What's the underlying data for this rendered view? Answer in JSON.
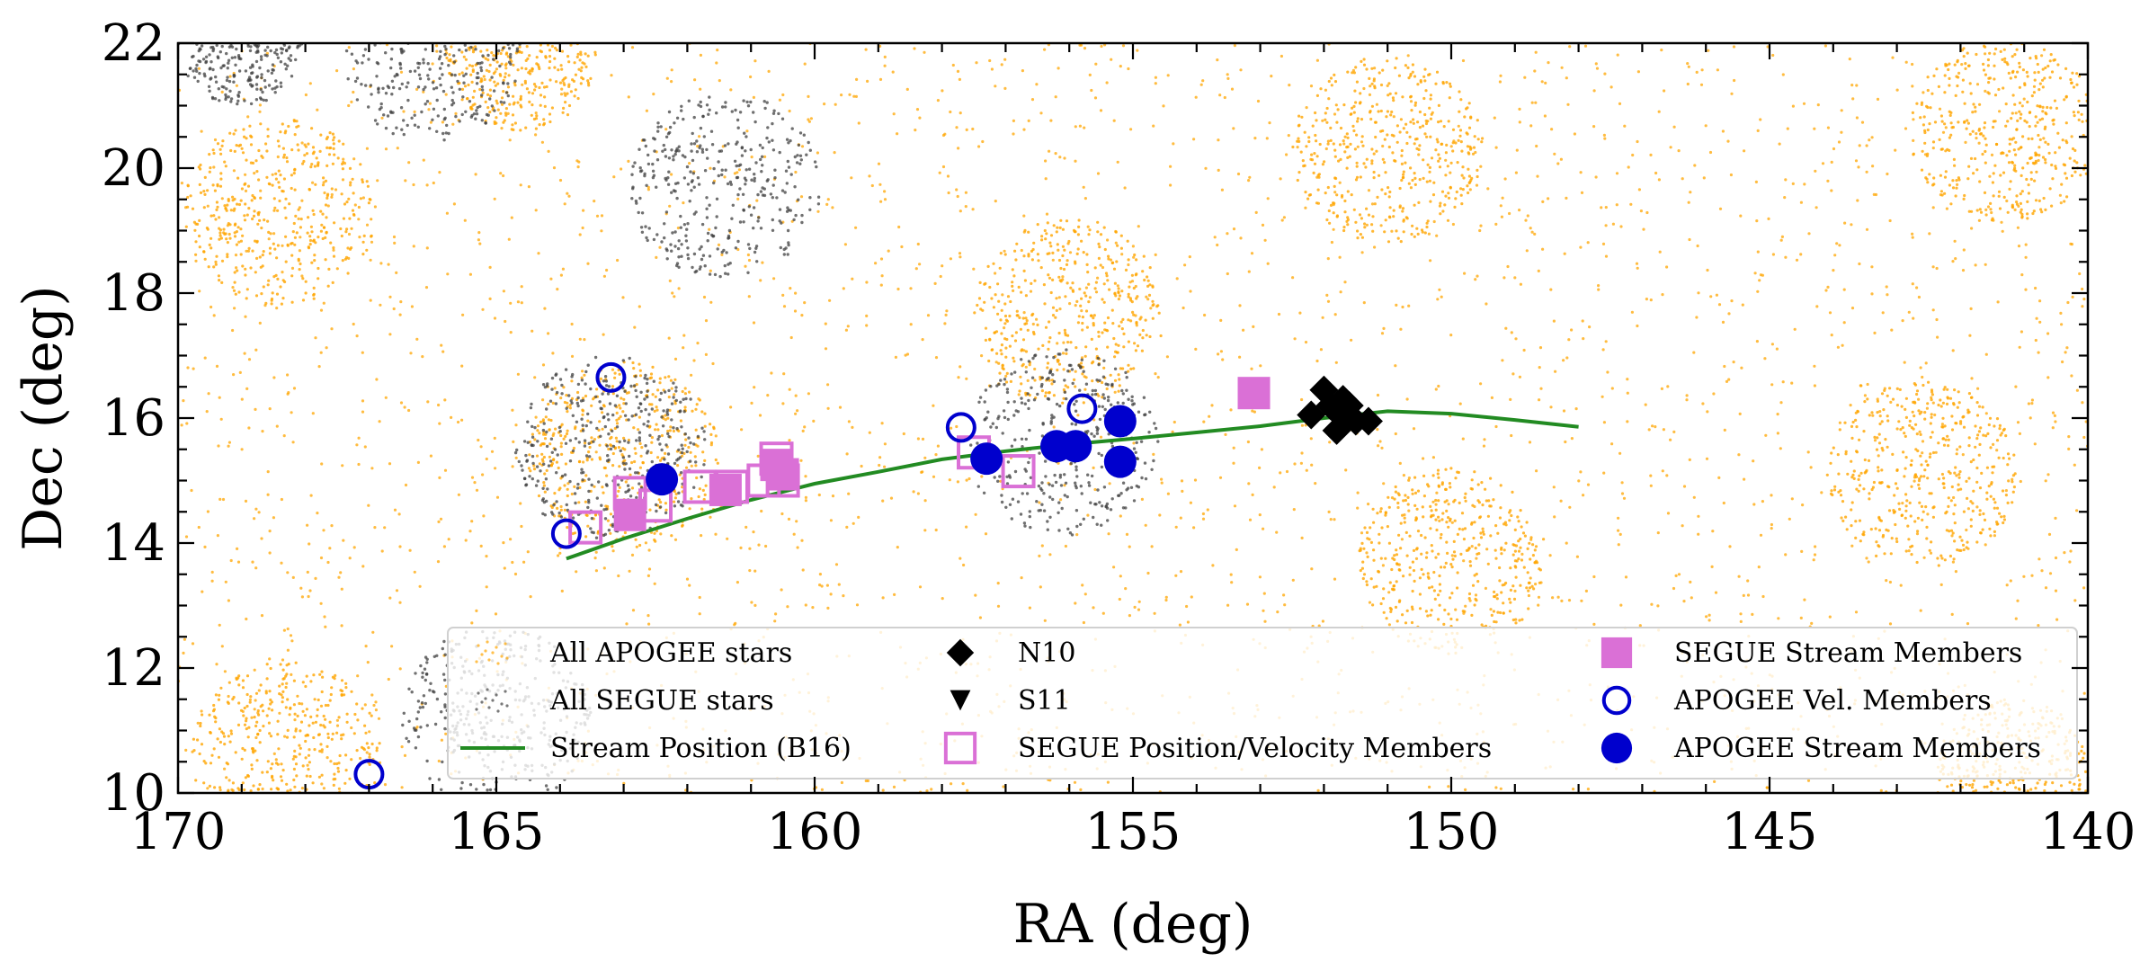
{
  "chart_data": {
    "type": "scatter",
    "xlabel": "RA (deg)",
    "ylabel": "Dec (deg)",
    "xlim": [
      170,
      140
    ],
    "ylim": [
      10,
      22
    ],
    "x_ticks": [
      170,
      165,
      160,
      155,
      150,
      145,
      140
    ],
    "y_ticks": [
      10,
      12,
      14,
      16,
      18,
      20,
      22
    ],
    "grid": false,
    "legend_placement": "lower-right",
    "colors": {
      "apogee_all": "#FFA500",
      "segue_all": "#404040",
      "stream": "#228B22",
      "segue_members": "#DA70D6",
      "apogee_members": "#0000CD",
      "n10": "#000000"
    },
    "background_fields": {
      "apogee": [
        {
          "ra": 168.4,
          "dec": 19.3,
          "r": 1.5
        },
        {
          "ra": 168.3,
          "dec": 10.6,
          "r": 1.5
        },
        {
          "ra": 156.0,
          "dec": 17.7,
          "r": 1.5
        },
        {
          "ra": 163.0,
          "dec": 15.4,
          "r": 1.5
        },
        {
          "ra": 151.0,
          "dec": 20.3,
          "r": 1.5
        },
        {
          "ra": 150.0,
          "dec": 13.7,
          "r": 1.5
        },
        {
          "ra": 142.6,
          "dec": 15.1,
          "r": 1.5
        },
        {
          "ra": 141.3,
          "dec": 20.6,
          "r": 1.5
        },
        {
          "ra": 164.6,
          "dec": 21.8,
          "r": 1.2
        },
        {
          "ra": 141.2,
          "dec": 10.3,
          "r": 1.2
        }
      ],
      "segue": [
        {
          "ra": 161.4,
          "dec": 19.7,
          "r": 1.5
        },
        {
          "ra": 156.1,
          "dec": 15.6,
          "r": 1.5
        },
        {
          "ra": 163.2,
          "dec": 15.5,
          "r": 1.5
        },
        {
          "ra": 165.0,
          "dec": 11.2,
          "r": 1.5
        },
        {
          "ra": 166.0,
          "dec": 21.8,
          "r": 1.4
        },
        {
          "ra": 169.0,
          "dec": 22.0,
          "r": 1.0
        }
      ]
    },
    "series": [
      {
        "name": "Stream Position (B16)",
        "kind": "line",
        "points": [
          [
            163.9,
            13.75
          ],
          [
            163.0,
            14.07
          ],
          [
            162.0,
            14.39
          ],
          [
            161.0,
            14.69
          ],
          [
            160.0,
            14.95
          ],
          [
            159.0,
            15.14
          ],
          [
            158.0,
            15.34
          ],
          [
            157.0,
            15.47
          ],
          [
            156.0,
            15.58
          ],
          [
            155.0,
            15.67
          ],
          [
            154.0,
            15.77
          ],
          [
            153.0,
            15.87
          ],
          [
            152.0,
            16.0
          ],
          [
            151.0,
            16.11
          ],
          [
            150.0,
            16.07
          ],
          [
            149.0,
            15.97
          ],
          [
            148.0,
            15.86
          ]
        ]
      },
      {
        "name": "SEGUE Position/Velocity Members",
        "kind": "open-square",
        "points": [
          [
            163.6,
            14.25
          ],
          [
            162.9,
            14.8
          ],
          [
            162.5,
            14.6
          ],
          [
            161.8,
            14.9
          ],
          [
            161.3,
            14.9
          ],
          [
            160.8,
            15.0
          ],
          [
            160.6,
            15.35
          ],
          [
            160.5,
            15.0
          ],
          [
            157.5,
            15.45
          ],
          [
            156.8,
            15.15
          ]
        ]
      },
      {
        "name": "SEGUE Stream Members",
        "kind": "filled-square",
        "points": [
          [
            162.9,
            14.45
          ],
          [
            161.4,
            14.85
          ],
          [
            160.6,
            15.25
          ],
          [
            160.5,
            15.1
          ],
          [
            153.1,
            16.4
          ]
        ]
      },
      {
        "name": "APOGEE Vel. Members",
        "kind": "open-circle",
        "points": [
          [
            163.9,
            14.15
          ],
          [
            163.2,
            16.65
          ],
          [
            157.7,
            15.85
          ],
          [
            155.8,
            16.15
          ],
          [
            167.0,
            10.3
          ]
        ]
      },
      {
        "name": "APOGEE Stream Members",
        "kind": "filled-circle",
        "points": [
          [
            162.4,
            15.02
          ],
          [
            157.3,
            15.35
          ],
          [
            156.2,
            15.55
          ],
          [
            155.9,
            15.55
          ],
          [
            155.2,
            15.95
          ],
          [
            155.2,
            15.3
          ]
        ]
      },
      {
        "name": "N10",
        "kind": "diamond",
        "points": [
          [
            152.0,
            16.45
          ],
          [
            151.7,
            16.3
          ],
          [
            152.2,
            16.05
          ],
          [
            151.8,
            16.1
          ],
          [
            151.6,
            16.2
          ],
          [
            151.5,
            15.95
          ],
          [
            151.8,
            15.8
          ],
          [
            151.3,
            15.95
          ],
          [
            151.6,
            16.05
          ],
          [
            151.9,
            16.2
          ]
        ]
      },
      {
        "name": "S11",
        "kind": "triangle-down",
        "points": []
      }
    ],
    "legend": [
      {
        "label": "All APOGEE stars",
        "kind": "dots-orange"
      },
      {
        "label": "All SEGUE stars",
        "kind": "dots-grey"
      },
      {
        "label": "Stream Position (B16)",
        "kind": "line"
      },
      {
        "label": "N10",
        "kind": "diamond"
      },
      {
        "label": "S11",
        "kind": "triangle-down"
      },
      {
        "label": "SEGUE Position/Velocity Members",
        "kind": "open-square"
      },
      {
        "label": "SEGUE Stream Members",
        "kind": "filled-square"
      },
      {
        "label": "APOGEE Vel. Members",
        "kind": "open-circle"
      },
      {
        "label": "APOGEE Stream Members",
        "kind": "filled-circle"
      }
    ]
  }
}
